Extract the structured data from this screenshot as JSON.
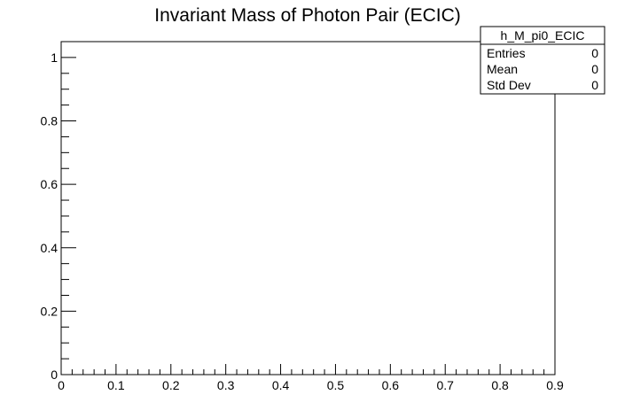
{
  "chart_data": {
    "type": "bar",
    "title": "Invariant Mass of Photon Pair (ECIC)",
    "xlabel": "",
    "ylabel": "",
    "xlim": [
      0,
      0.9
    ],
    "ylim": [
      0,
      1.05
    ],
    "x_ticks": [
      "0",
      "0.1",
      "0.2",
      "0.3",
      "0.4",
      "0.5",
      "0.6",
      "0.7",
      "0.8",
      "0.9"
    ],
    "y_ticks": [
      "0",
      "0.2",
      "0.4",
      "0.6",
      "0.8",
      "1"
    ],
    "grid": false,
    "categories": [],
    "values": []
  },
  "stats_box": {
    "name": "h_M_pi0_ECIC",
    "rows": [
      {
        "label": "Entries",
        "value": "0"
      },
      {
        "label": "Mean",
        "value": "0"
      },
      {
        "label": "Std Dev",
        "value": "0"
      }
    ]
  }
}
